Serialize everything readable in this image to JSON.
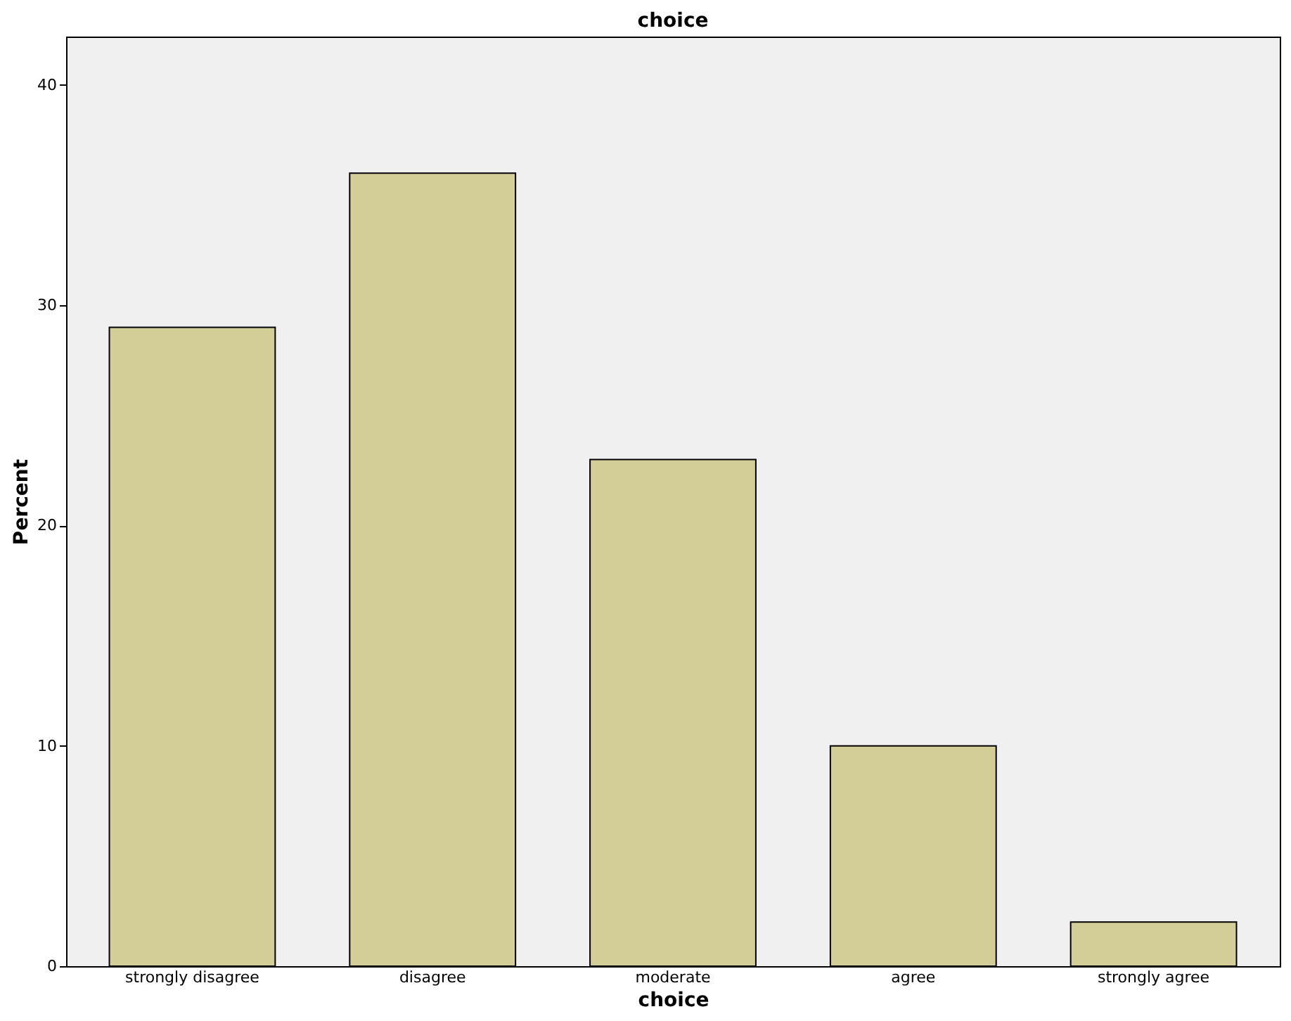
{
  "chart_data": {
    "type": "bar",
    "title": "choice",
    "xlabel": "choice",
    "ylabel": "Percent",
    "categories": [
      "strongly disagree",
      "disagree",
      "moderate",
      "agree",
      "strongly agree"
    ],
    "values": [
      29,
      36,
      23,
      10,
      2
    ],
    "color": "#d3ce97",
    "ylim": [
      0,
      42.2
    ],
    "yticks": [
      0,
      10,
      20,
      30,
      40
    ],
    "grid": false
  }
}
